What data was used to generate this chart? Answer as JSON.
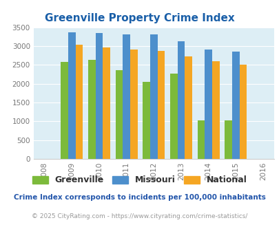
{
  "title": "Greenville Property Crime Index",
  "all_years": [
    2008,
    2009,
    2010,
    2011,
    2012,
    2013,
    2014,
    2015,
    2016
  ],
  "data_years": [
    2009,
    2010,
    2011,
    2012,
    2013,
    2014,
    2015
  ],
  "greenville": [
    2580,
    2640,
    2360,
    2040,
    2260,
    1020,
    1020
  ],
  "missouri": [
    3370,
    3350,
    3310,
    3310,
    3120,
    2910,
    2860
  ],
  "national": [
    3040,
    2960,
    2910,
    2870,
    2730,
    2600,
    2500
  ],
  "greenville_color": "#7cba3b",
  "missouri_color": "#4d8fcc",
  "national_color": "#f5a623",
  "bg_color": "#ddeef5",
  "ylim": [
    0,
    3500
  ],
  "yticks": [
    0,
    500,
    1000,
    1500,
    2000,
    2500,
    3000,
    3500
  ],
  "bar_width": 0.27,
  "legend_labels": [
    "Greenville",
    "Missouri",
    "National"
  ],
  "footnote1": "Crime Index corresponds to incidents per 100,000 inhabitants",
  "footnote2": "© 2025 CityRating.com - https://www.cityrating.com/crime-statistics/",
  "title_color": "#1a5fa8",
  "tick_color": "#777777",
  "footnote1_color": "#2255aa",
  "footnote2_color": "#999999",
  "legend_text_color": "#333333"
}
